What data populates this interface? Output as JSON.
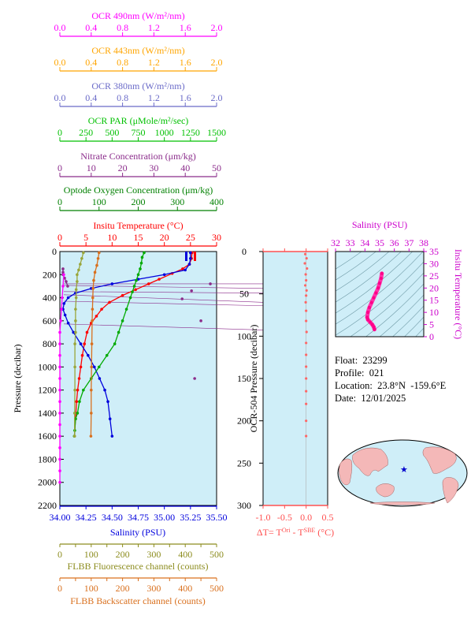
{
  "top_axes": [
    {
      "label": "OCR 490nm (W/m²/nm)",
      "ticks": [
        "0.0",
        "0.4",
        "0.8",
        "1.2",
        "1.6",
        "2.0"
      ],
      "color": "#ff00ff"
    },
    {
      "label": "OCR 443nm (W/m²/nm)",
      "ticks": [
        "0.0",
        "0.4",
        "0.8",
        "1.2",
        "1.6",
        "2.0"
      ],
      "color": "#ffa500"
    },
    {
      "label": "OCR 380nm (W/m²/nm)",
      "ticks": [
        "0.0",
        "0.4",
        "0.8",
        "1.2",
        "1.6",
        "2.0"
      ],
      "color": "#6a6ac8"
    },
    {
      "label": "OCR PAR (μMole/m²/sec)",
      "ticks": [
        "0",
        "250",
        "500",
        "750",
        "1000",
        "1250",
        "1500"
      ],
      "color": "#00c000"
    },
    {
      "label": "Nitrate Concentration (μm/kg)",
      "ticks": [
        "0",
        "10",
        "20",
        "30",
        "40",
        "50"
      ],
      "color": "#8b2c8b"
    },
    {
      "label": "Optode Oxygen Concentration (μm/kg)",
      "ticks": [
        "0",
        "100",
        "200",
        "300",
        "400"
      ],
      "color": "#008000"
    },
    {
      "label": "Insitu Temperature (°C)",
      "ticks": [
        "0",
        "5",
        "10",
        "15",
        "20",
        "25",
        "30"
      ],
      "color": "#ff0000"
    }
  ],
  "main": {
    "ylabel": "Pressure (decibar)",
    "yticks": [
      "0",
      "200",
      "400",
      "600",
      "800",
      "1000",
      "1200",
      "1400",
      "1600",
      "1800",
      "2000",
      "2200"
    ],
    "salinity_ticks": [
      "34.00",
      "34.25",
      "34.50",
      "34.75",
      "35.00",
      "35.25",
      "35.50"
    ],
    "salinity_label": "Salinity (PSU)",
    "flbb_fl_ticks": [
      "0",
      "50",
      "100",
      "150",
      "200",
      "250",
      "300",
      "350",
      "400",
      "450",
      "500"
    ],
    "flbb_fl_label": "FLBB Fluorescence channel (counts)",
    "flbb_bs_ticks": [
      "0",
      "50",
      "100",
      "150",
      "200",
      "250",
      "300",
      "350",
      "400",
      "450",
      "500"
    ],
    "flbb_bs_label": "FLBB Backscatter channel (counts)"
  },
  "ocr_panel": {
    "ylabel": "OCR-504 Pressure (decibar)",
    "yticks": [
      "0",
      "50",
      "100",
      "150",
      "200",
      "250",
      "300"
    ],
    "xticks": [
      "-1.0",
      "-0.5",
      "0.0",
      "0.5"
    ],
    "xlabel": "ΔT= T",
    "xlabel_sup1": "Ori",
    "xlabel_mid": " - T",
    "xlabel_sup2": "SBE",
    "xlabel_end": " (°C)"
  },
  "ts_panel": {
    "title": "Salinity (PSU)",
    "xticks": [
      "32",
      "33",
      "34",
      "35",
      "36",
      "37",
      "38"
    ],
    "ylabel": "Insitu Temperature (°C)",
    "yticks": [
      "0",
      "5",
      "10",
      "15",
      "20",
      "25",
      "30",
      "35"
    ]
  },
  "info": {
    "float": "Float:  23299",
    "profile": "Profile:  021",
    "location": "Location:  23.8°N  -159.6°E",
    "date": "Date:  12/01/2025"
  },
  "chart_data": [
    {
      "type": "line",
      "title": "",
      "ylabel": "Pressure (decibar)",
      "ylim": [
        2200,
        0
      ],
      "series": [
        {
          "name": "Insitu Temperature (°C)",
          "color": "#ff0000",
          "x": [
            25.3,
            25.2,
            24.8,
            23.5,
            21.5,
            19.0,
            17.0,
            14.5,
            12.0,
            9.5,
            8.0,
            7.0,
            6.0,
            5.2,
            4.7,
            4.3,
            4.0,
            3.7,
            3.4,
            3.2,
            3.0,
            2.8
          ],
          "y": [
            10,
            60,
            110,
            150,
            190,
            240,
            280,
            330,
            380,
            440,
            500,
            560,
            620,
            700,
            800,
            900,
            1000,
            1100,
            1200,
            1300,
            1450,
            1600
          ]
        },
        {
          "name": "Salinity (PSU)",
          "color": "#0000dd",
          "x": [
            35.25,
            35.25,
            35.24,
            35.2,
            35.0,
            34.75,
            34.5,
            34.3,
            34.15,
            34.08,
            34.04,
            34.03,
            34.05,
            34.08,
            34.13,
            34.2,
            34.27,
            34.33,
            34.38,
            34.43,
            34.46,
            34.48,
            34.5
          ],
          "y": [
            10,
            60,
            110,
            160,
            200,
            240,
            280,
            320,
            360,
            400,
            450,
            500,
            550,
            620,
            700,
            800,
            900,
            1000,
            1100,
            1200,
            1300,
            1450,
            1600
          ]
        },
        {
          "name": "Optode Oxygen Concentration (μm/kg)",
          "color": "#00aa00",
          "x": [
            215,
            210,
            208,
            205,
            200,
            195,
            190,
            185,
            180,
            170,
            160,
            150,
            140,
            120,
            100,
            80,
            60,
            50,
            45,
            40,
            38,
            37
          ],
          "y": [
            10,
            50,
            100,
            150,
            200,
            250,
            300,
            350,
            400,
            500,
            600,
            700,
            800,
            900,
            1000,
            1100,
            1200,
            1300,
            1400,
            1450,
            1550,
            1600
          ]
        },
        {
          "name": "FLBB Fluorescence channel (counts)",
          "color": "#9aa63a",
          "x": [
            75,
            70,
            65,
            60,
            55,
            55,
            52,
            52,
            50,
            50,
            50,
            48,
            48,
            48,
            47,
            47
          ],
          "y": [
            10,
            60,
            110,
            160,
            200,
            260,
            330,
            400,
            500,
            600,
            700,
            800,
            1000,
            1200,
            1400,
            1600
          ]
        },
        {
          "name": "FLBB Backscatter channel (counts)",
          "color": "#d9701e",
          "x": [
            125,
            122,
            118,
            112,
            108,
            106,
            105,
            104,
            103,
            102,
            101,
            100,
            100,
            99
          ],
          "y": [
            10,
            60,
            120,
            180,
            250,
            320,
            400,
            500,
            600,
            800,
            1000,
            1200,
            1400,
            1600
          ]
        },
        {
          "name": "Nitrate Concentration (μm/kg)",
          "color": "#8b2c8b",
          "x": [
            1,
            1,
            1,
            1.5,
            2,
            2.5
          ],
          "y": [
            150,
            180,
            200,
            230,
            260,
            300
          ]
        },
        {
          "name": "Nitrate outliers",
          "color": "#8b2c8b",
          "x": [
            48,
            42,
            39,
            45,
            43
          ],
          "y": [
            280,
            340,
            410,
            600,
            1100
          ]
        },
        {
          "name": "OCR 490nm (W/m²/nm)",
          "color": "#ff00ff",
          "x": [
            0.05,
            0.04,
            0.03,
            0.02,
            0.01,
            0.0,
            0.0,
            0.0,
            0.0,
            0.0,
            0.0,
            0.0,
            0.0,
            0.0,
            0.0,
            0.0,
            0.0,
            0.0,
            0.0
          ],
          "y": [
            200,
            300,
            400,
            500,
            600,
            700,
            800,
            900,
            1000,
            1100,
            1200,
            1300,
            1400,
            1500,
            1600,
            1700,
            1800,
            1900,
            2000
          ]
        }
      ]
    },
    {
      "type": "scatter",
      "title": "",
      "xlabel": "ΔT= TOri - TSBE (°C)",
      "ylabel": "OCR-504 Pressure (decibar)",
      "xlim": [
        -1.0,
        0.5
      ],
      "ylim": [
        300,
        0
      ],
      "x": [
        -0.02,
        0.01,
        -0.03,
        0.02,
        -0.01,
        0.0,
        -0.02,
        0.01,
        0.0,
        -0.01,
        0.0,
        0.0,
        0.01,
        0.0,
        0.0,
        0.0,
        0.0,
        0.0,
        0.0,
        0.0,
        0.0
      ],
      "y": [
        3,
        8,
        14,
        20,
        27,
        34,
        40,
        46,
        52,
        60,
        70,
        82,
        95,
        108,
        122,
        136,
        150,
        165,
        180,
        200,
        218
      ]
    },
    {
      "type": "scatter",
      "title": "",
      "xlabel": "Salinity (PSU)",
      "ylabel": "Insitu Temperature (°C)",
      "xlim": [
        32,
        38
      ],
      "ylim": [
        0,
        35
      ],
      "x": [
        35.15,
        35.1,
        35.0,
        34.9,
        34.75,
        34.6,
        34.45,
        34.3,
        34.2,
        34.15,
        34.2,
        34.35,
        34.5,
        34.6,
        34.65
      ],
      "y": [
        26,
        24,
        22,
        20,
        18,
        16,
        14,
        12,
        10,
        8,
        7,
        6,
        5,
        4,
        3
      ]
    }
  ]
}
